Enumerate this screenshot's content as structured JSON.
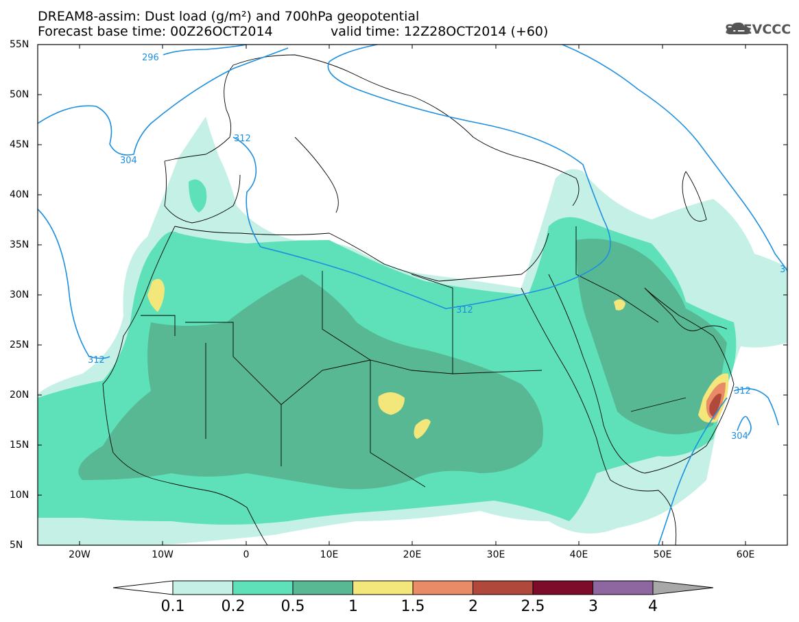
{
  "header": {
    "line1": "DREAM8-assim: Dust load (g/m²) and 700hPa geopotential",
    "line2_left": "Forecast base time: 00Z26OCT2014",
    "line2_right": "valid time: 12Z28OCT2014 (+60)",
    "logo_text": "SEEVCCC"
  },
  "axes": {
    "y_labels": [
      "55N",
      "50N",
      "45N",
      "40N",
      "35N",
      "30N",
      "25N",
      "20N",
      "15N",
      "10N",
      "5N"
    ],
    "x_labels": [
      "20W",
      "10W",
      "0",
      "10E",
      "20E",
      "30E",
      "40E",
      "50E",
      "60E"
    ],
    "lon_range": [
      -25,
      65
    ],
    "lat_range": [
      5,
      55
    ]
  },
  "contour_labels": [
    "296",
    "304",
    "312",
    "312",
    "312",
    "304",
    "312",
    "3"
  ],
  "colorbar": {
    "labels": [
      "0.1",
      "0.2",
      "0.5",
      "1",
      "1.5",
      "2",
      "2.5",
      "3",
      "4"
    ],
    "colors": [
      "#c4f0e6",
      "#5ee1b9",
      "#58b894",
      "#f3e67a",
      "#e88b66",
      "#b0483c",
      "#7c0c2a",
      "#8e67a0",
      "#a8a8a8"
    ]
  },
  "colors": {
    "land_light": "#c4f0e6",
    "land_mid": "#5ee1b9",
    "land_dark": "#58b894",
    "geopotential_line": "#1d8fe0"
  }
}
